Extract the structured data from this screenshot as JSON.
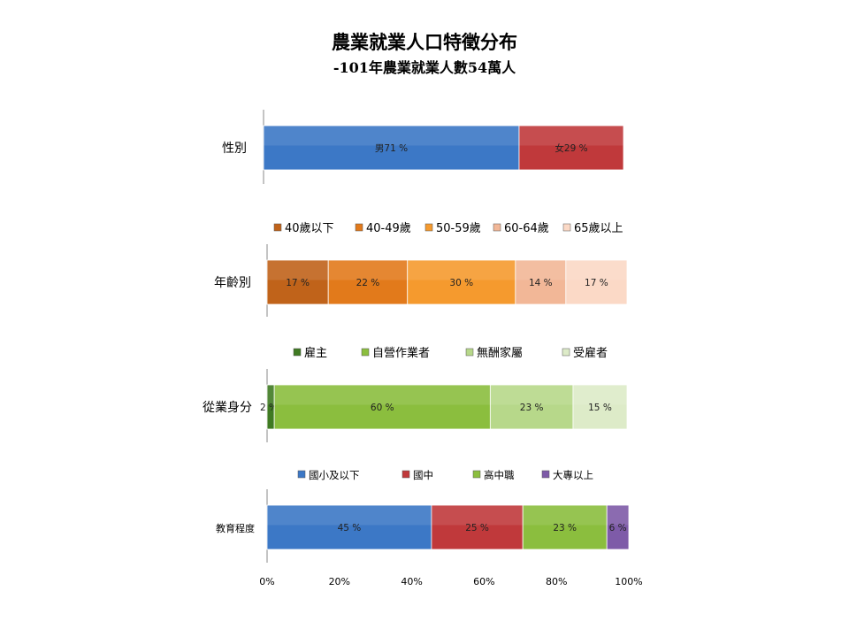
{
  "title": "農業就業人口特徵分布",
  "subtitle": "-101年農業就業人數54萬人",
  "chart_data": {
    "type": "bar",
    "orientation": "horizontal",
    "stacked": "percent",
    "x_ticks": [
      "0%",
      "20%",
      "40%",
      "60%",
      "80%",
      "100%"
    ],
    "xlim": [
      0,
      100
    ],
    "grid": false,
    "groups": [
      {
        "category": "性別",
        "legend": false,
        "series": [
          {
            "name": "男",
            "value": 71,
            "label": "71 %",
            "color": "#3C78C6"
          },
          {
            "name": "女",
            "value": 29,
            "label": "29 %",
            "color": "#C0393B"
          }
        ]
      },
      {
        "category": "年齡別",
        "legend": true,
        "legend_position": "top",
        "series": [
          {
            "name": "40歲以下",
            "value": 17,
            "label": "17 %",
            "color": "#C0631A"
          },
          {
            "name": "40-49歲",
            "value": 22,
            "label": "22 %",
            "color": "#E27A1B"
          },
          {
            "name": "50-59歲",
            "value": 30,
            "label": "30 %",
            "color": "#F59A2E"
          },
          {
            "name": "60-64歲",
            "value": 14,
            "label": "14 %",
            "color": "#F2B797"
          },
          {
            "name": "65歲以上",
            "value": 17,
            "label": "17 %",
            "color": "#FBD9C6"
          }
        ]
      },
      {
        "category": "從業身分",
        "legend": true,
        "legend_position": "top",
        "series": [
          {
            "name": "雇主",
            "value": 2,
            "label": "2 %",
            "color": "#3F7A22"
          },
          {
            "name": "自營作業者",
            "value": 60,
            "label": "60 %",
            "color": "#8BBE3E"
          },
          {
            "name": "無酬家屬",
            "value": 23,
            "label": "23 %",
            "color": "#B7D88A"
          },
          {
            "name": "受雇者",
            "value": 15,
            "label": "15 %",
            "color": "#DDEBC8"
          }
        ]
      },
      {
        "category": "教育程度",
        "legend": true,
        "legend_position": "top",
        "series": [
          {
            "name": "國小及以下",
            "value": 45,
            "label": "45 %",
            "color": "#3C78C6"
          },
          {
            "name": "國中",
            "value": 25,
            "label": "25 %",
            "color": "#C0393B"
          },
          {
            "name": "高中職",
            "value": 23,
            "label": "23 %",
            "color": "#8BBE3E"
          },
          {
            "name": "大專以上",
            "value": 6,
            "label": "6 %",
            "color": "#7E5BA8"
          }
        ]
      }
    ]
  }
}
